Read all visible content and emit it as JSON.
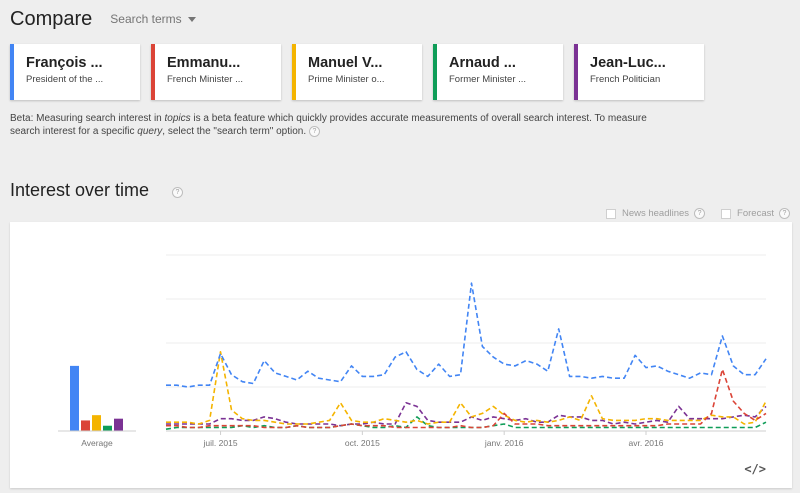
{
  "header": {
    "title": "Compare",
    "search_terms_label": "Search terms"
  },
  "cards": [
    {
      "name": "François ...",
      "desc": "President of the ...",
      "color": "#4285f4"
    },
    {
      "name": "Emmanu...",
      "desc": "French Minister ...",
      "color": "#db4437"
    },
    {
      "name": "Manuel V...",
      "desc": "Prime Minister o...",
      "color": "#f4b400"
    },
    {
      "name": "Arnaud ...",
      "desc": "Former Minister ...",
      "color": "#0f9d58"
    },
    {
      "name": "Jean-Luc...",
      "desc": "French Politician",
      "color": "#7b3294"
    }
  ],
  "beta": {
    "p1": "Beta: Measuring search interest in ",
    "em1": "topics",
    "p2": " is a beta feature which quickly provides accurate measurements of overall search interest. To measure search interest for a specific ",
    "em2": "query",
    "p3": ", select the \"search term\" option."
  },
  "interest": {
    "title": "Interest over time",
    "news_headlines": "News headlines",
    "forecast": "Forecast",
    "embed": "</>"
  },
  "chart_data": {
    "type": "line",
    "x_ticks": [
      "juil. 2015",
      "oct. 2015",
      "janv. 2016",
      "avr. 2016"
    ],
    "x_tick_index": [
      5,
      18,
      31,
      44
    ],
    "ylim": [
      0,
      100
    ],
    "average_label": "Average",
    "averages": [
      37,
      6,
      9,
      3,
      7
    ],
    "series": [
      {
        "color": "#4285f4",
        "values": [
          26,
          26,
          25,
          26,
          26,
          44,
          32,
          28,
          27,
          40,
          33,
          31,
          29,
          34,
          30,
          29,
          28,
          37,
          31,
          31,
          32,
          42,
          45,
          35,
          31,
          38,
          31,
          32,
          84,
          48,
          42,
          38,
          37,
          40,
          38,
          34,
          58,
          31,
          31,
          30,
          31,
          30,
          30,
          43,
          36,
          37,
          34,
          32,
          30,
          33,
          32,
          54,
          37,
          32,
          32,
          41
        ]
      },
      {
        "color": "#db4437",
        "values": [
          3,
          3,
          2,
          2,
          3,
          3,
          3,
          3,
          3,
          2,
          2,
          2,
          3,
          2,
          2,
          2,
          3,
          4,
          3,
          3,
          3,
          2,
          2,
          2,
          2,
          2,
          2,
          3,
          2,
          2,
          3,
          10,
          4,
          4,
          4,
          3,
          3,
          3,
          3,
          3,
          3,
          3,
          3,
          3,
          3,
          3,
          4,
          4,
          4,
          4,
          10,
          35,
          17,
          10,
          6,
          10
        ]
      },
      {
        "color": "#f4b400",
        "values": [
          5,
          5,
          5,
          4,
          6,
          45,
          12,
          7,
          6,
          6,
          5,
          4,
          4,
          4,
          5,
          6,
          16,
          6,
          5,
          5,
          7,
          6,
          5,
          6,
          4,
          5,
          5,
          16,
          8,
          10,
          14,
          9,
          6,
          5,
          6,
          5,
          6,
          8,
          6,
          20,
          7,
          6,
          6,
          6,
          7,
          7,
          6,
          6,
          6,
          6,
          9,
          8,
          8,
          4,
          5,
          17
        ]
      },
      {
        "color": "#0f9d58",
        "values": [
          1,
          2,
          2,
          2,
          2,
          2,
          2,
          3,
          2,
          3,
          2,
          2,
          3,
          2,
          2,
          2,
          3,
          4,
          3,
          2,
          2,
          3,
          2,
          8,
          3,
          2,
          2,
          2,
          2,
          2,
          3,
          4,
          2,
          2,
          2,
          2,
          2,
          2,
          2,
          2,
          2,
          2,
          2,
          2,
          2,
          2,
          2,
          2,
          2,
          2,
          2,
          2,
          2,
          2,
          2,
          5
        ]
      },
      {
        "color": "#7b3294",
        "values": [
          4,
          4,
          4,
          4,
          4,
          7,
          7,
          6,
          6,
          8,
          7,
          5,
          4,
          4,
          4,
          4,
          3,
          4,
          4,
          5,
          4,
          4,
          16,
          14,
          6,
          5,
          5,
          5,
          8,
          6,
          8,
          7,
          6,
          7,
          5,
          5,
          9,
          8,
          8,
          6,
          6,
          4,
          5,
          4,
          5,
          6,
          5,
          14,
          7,
          7,
          7,
          7,
          8,
          9,
          8,
          14
        ]
      }
    ]
  }
}
